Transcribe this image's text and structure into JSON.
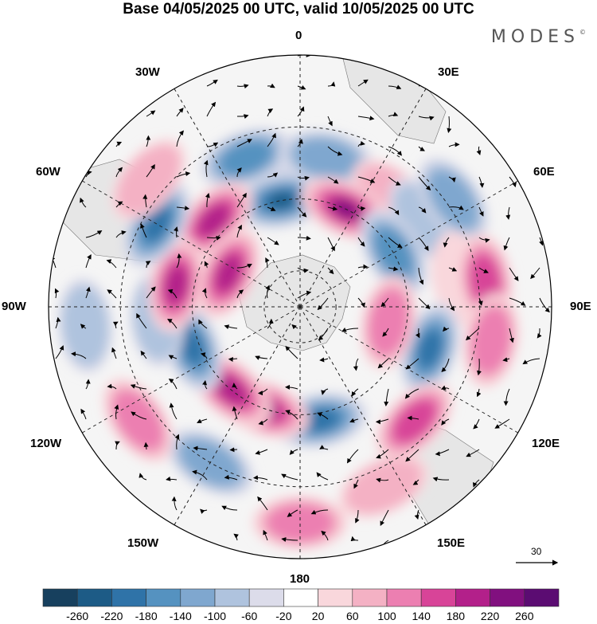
{
  "title": "Base 04/05/2025 00 UTC, valid 10/05/2025 00 UTC",
  "brand": "MODES",
  "brand_mark": "©",
  "longitudes": {
    "top": "0",
    "bottom": "180",
    "left": "90W",
    "right": "90E",
    "upper_left_1": "30W",
    "upper_left_2": "60W",
    "upper_right_1": "30E",
    "upper_right_2": "60E",
    "lower_left_1": "120W",
    "lower_left_2": "150W",
    "lower_right_1": "120E",
    "lower_right_2": "150E"
  },
  "wind_reference": "30",
  "colorbar": {
    "labels": [
      "-260",
      "-220",
      "-180",
      "-140",
      "-100",
      "-60",
      "-20",
      "20",
      "60",
      "100",
      "140",
      "180",
      "220",
      "260"
    ],
    "colors": [
      "#17405e",
      "#1d5b86",
      "#2f73a8",
      "#5592c0",
      "#7fa7cf",
      "#afc3de",
      "#dcdcea",
      "#ffffff",
      "#f9d7dc",
      "#f4b1c4",
      "#ec7fb1",
      "#d84498",
      "#b3208a",
      "#81107f",
      "#5b0c72"
    ]
  },
  "anomalies": [
    {
      "lon": 0,
      "lat": 58,
      "value": -60
    },
    {
      "lon": -20,
      "lat": 46,
      "value": -140
    },
    {
      "lon": -10,
      "lat": 60,
      "value": -220
    },
    {
      "lon": -45,
      "lat": 56,
      "value": 180
    },
    {
      "lon": 10,
      "lat": 48,
      "value": -100
    },
    {
      "lon": 40,
      "lat": 50,
      "value": 60
    },
    {
      "lon": 25,
      "lat": 60,
      "value": 220
    },
    {
      "lon": 55,
      "lat": 48,
      "value": -60
    },
    {
      "lon": 60,
      "lat": 60,
      "value": -140
    },
    {
      "lon": 55,
      "lat": 38,
      "value": -100
    },
    {
      "lon": 80,
      "lat": 45,
      "value": 20
    },
    {
      "lon": 82,
      "lat": 38,
      "value": 140
    },
    {
      "lon": 100,
      "lat": 36,
      "value": 100
    },
    {
      "lon": 108,
      "lat": 52,
      "value": -180
    },
    {
      "lon": 100,
      "lat": 65,
      "value": 100
    },
    {
      "lon": 135,
      "lat": 45,
      "value": 140
    },
    {
      "lon": 155,
      "lat": 35,
      "value": 60
    },
    {
      "lon": 170,
      "lat": 58,
      "value": -180
    },
    {
      "lon": 180,
      "lat": 30,
      "value": 100
    },
    {
      "lon": -150,
      "lat": 40,
      "value": -100
    },
    {
      "lon": -160,
      "lat": 60,
      "value": 180
    },
    {
      "lon": -140,
      "lat": 60,
      "value": 180
    },
    {
      "lon": -125,
      "lat": 35,
      "value": 100
    },
    {
      "lon": -110,
      "lat": 58,
      "value": -180
    },
    {
      "lon": -95,
      "lat": 50,
      "value": -60
    },
    {
      "lon": -80,
      "lat": 55,
      "value": 180
    },
    {
      "lon": -65,
      "lat": 68,
      "value": 180
    },
    {
      "lon": -60,
      "lat": 44,
      "value": -180
    },
    {
      "lon": -50,
      "lat": 35,
      "value": 60
    },
    {
      "lon": -95,
      "lat": 30,
      "value": -60
    }
  ]
}
